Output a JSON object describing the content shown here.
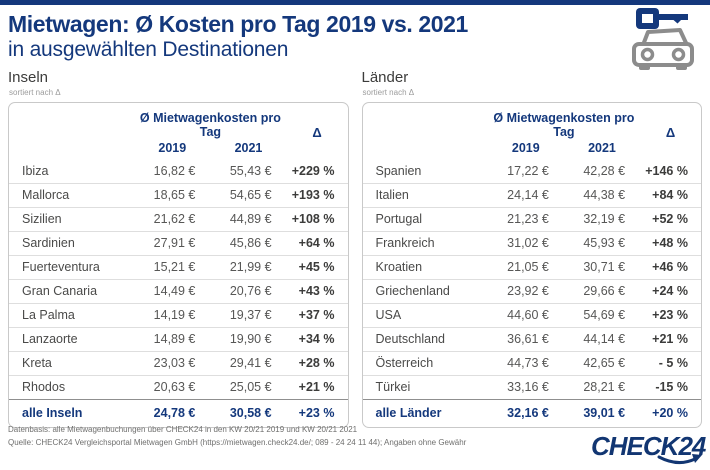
{
  "header": {
    "title": "Mietwagen: Ø Kosten pro Tag 2019 vs. 2021",
    "subtitle": "in ausgewählten Destinationen",
    "icon": "car-with-key-icon"
  },
  "colors": {
    "navy": "#14387c",
    "logo_navy": "#123672",
    "icon_gray": "#8c8c8c",
    "row_text": "#4a4a49",
    "value_text": "#575756",
    "delta_text": "#3c3c3b"
  },
  "tables": [
    {
      "section_title": "Inseln",
      "sort_note": "sortiert nach Δ",
      "header": {
        "group": "Ø Mietwagenkosten pro Tag",
        "col_2019": "2019",
        "col_2021": "2021",
        "delta": "Δ"
      },
      "rows": [
        {
          "name": "Ibiza",
          "v2019": "16,82 €",
          "v2021": "55,43 €",
          "delta": "+229 %"
        },
        {
          "name": "Mallorca",
          "v2019": "18,65 €",
          "v2021": "54,65 €",
          "delta": "+193 %"
        },
        {
          "name": "Sizilien",
          "v2019": "21,62 €",
          "v2021": "44,89 €",
          "delta": "+108 %"
        },
        {
          "name": "Sardinien",
          "v2019": "27,91 €",
          "v2021": "45,86 €",
          "delta": "+64 %"
        },
        {
          "name": "Fuerteventura",
          "v2019": "15,21 €",
          "v2021": "21,99 €",
          "delta": "+45 %"
        },
        {
          "name": "Gran Canaria",
          "v2019": "14,49 €",
          "v2021": "20,76 €",
          "delta": "+43 %"
        },
        {
          "name": "La Palma",
          "v2019": "14,19 €",
          "v2021": "19,37 €",
          "delta": "+37 %"
        },
        {
          "name": "Lanzaorte",
          "v2019": "14,89 €",
          "v2021": "19,90 €",
          "delta": "+34 %"
        },
        {
          "name": "Kreta",
          "v2019": "23,03 €",
          "v2021": "29,41 €",
          "delta": "+28 %"
        },
        {
          "name": "Rhodos",
          "v2019": "20,63 €",
          "v2021": "25,05 €",
          "delta": "+21 %"
        }
      ],
      "total": {
        "name": "alle Inseln",
        "v2019": "24,78 €",
        "v2021": "30,58 €",
        "delta": "+23 %"
      }
    },
    {
      "section_title": "Länder",
      "sort_note": "sortiert nach Δ",
      "header": {
        "group": "Ø Mietwagenkosten pro Tag",
        "col_2019": "2019",
        "col_2021": "2021",
        "delta": "Δ"
      },
      "rows": [
        {
          "name": "Spanien",
          "v2019": "17,22 €",
          "v2021": "42,28 €",
          "delta": "+146 %"
        },
        {
          "name": "Italien",
          "v2019": "24,14 €",
          "v2021": "44,38 €",
          "delta": "+84 %"
        },
        {
          "name": "Portugal",
          "v2019": "21,23 €",
          "v2021": "32,19 €",
          "delta": "+52 %"
        },
        {
          "name": "Frankreich",
          "v2019": "31,02 €",
          "v2021": "45,93 €",
          "delta": "+48 %"
        },
        {
          "name": "Kroatien",
          "v2019": "21,05 €",
          "v2021": "30,71 €",
          "delta": "+46 %"
        },
        {
          "name": "Griechenland",
          "v2019": "23,92 €",
          "v2021": "29,66 €",
          "delta": "+24 %"
        },
        {
          "name": "USA",
          "v2019": "44,60 €",
          "v2021": "54,69 €",
          "delta": "+23 %"
        },
        {
          "name": "Deutschland",
          "v2019": "36,61 €",
          "v2021": "44,14 €",
          "delta": "+21 %"
        },
        {
          "name": "Österreich",
          "v2019": "44,73 €",
          "v2021": "42,65 €",
          "delta": "- 5 %"
        },
        {
          "name": "Türkei",
          "v2019": "33,16 €",
          "v2021": "28,21 €",
          "delta": "-15 %"
        }
      ],
      "total": {
        "name": "alle Länder",
        "v2019": "32,16 €",
        "v2021": "39,01 €",
        "delta": "+20 %"
      }
    }
  ],
  "footer": {
    "line1": "Datenbasis: alle Mietwagenbuchungen über CHECK24 in den KW 20/21 2019 und KW 20/21 2021",
    "line2": "Quelle: CHECK24 Vergleichsportal Mietwagen GmbH (https://mietwagen.check24.de/; 089 - 24 24 11 44); Angaben ohne Gewähr",
    "logo_text": "CHECK24"
  },
  "chart_data": [
    {
      "type": "table",
      "title": "Inseln – Ø Mietwagenkosten pro Tag (sortiert nach Δ)",
      "columns": [
        "Destination",
        "2019 (€)",
        "2021 (€)",
        "Δ (%)"
      ],
      "rows": [
        [
          "Ibiza",
          16.82,
          55.43,
          229
        ],
        [
          "Mallorca",
          18.65,
          54.65,
          193
        ],
        [
          "Sizilien",
          21.62,
          44.89,
          108
        ],
        [
          "Sardinien",
          27.91,
          45.86,
          64
        ],
        [
          "Fuerteventura",
          15.21,
          21.99,
          45
        ],
        [
          "Gran Canaria",
          14.49,
          20.76,
          43
        ],
        [
          "La Palma",
          14.19,
          19.37,
          37
        ],
        [
          "Lanzaorte",
          14.89,
          19.9,
          34
        ],
        [
          "Kreta",
          23.03,
          29.41,
          28
        ],
        [
          "Rhodos",
          20.63,
          25.05,
          21
        ]
      ],
      "total_row": [
        "alle Inseln",
        24.78,
        30.58,
        23
      ]
    },
    {
      "type": "table",
      "title": "Länder – Ø Mietwagenkosten pro Tag (sortiert nach Δ)",
      "columns": [
        "Destination",
        "2019 (€)",
        "2021 (€)",
        "Δ (%)"
      ],
      "rows": [
        [
          "Spanien",
          17.22,
          42.28,
          146
        ],
        [
          "Italien",
          24.14,
          44.38,
          84
        ],
        [
          "Portugal",
          21.23,
          32.19,
          52
        ],
        [
          "Frankreich",
          31.02,
          45.93,
          48
        ],
        [
          "Kroatien",
          21.05,
          30.71,
          46
        ],
        [
          "Griechenland",
          23.92,
          29.66,
          24
        ],
        [
          "USA",
          44.6,
          54.69,
          23
        ],
        [
          "Deutschland",
          36.61,
          44.14,
          21
        ],
        [
          "Österreich",
          44.73,
          42.65,
          -5
        ],
        [
          "Türkei",
          33.16,
          28.21,
          -15
        ]
      ],
      "total_row": [
        "alle Länder",
        32.16,
        39.01,
        20
      ]
    }
  ]
}
